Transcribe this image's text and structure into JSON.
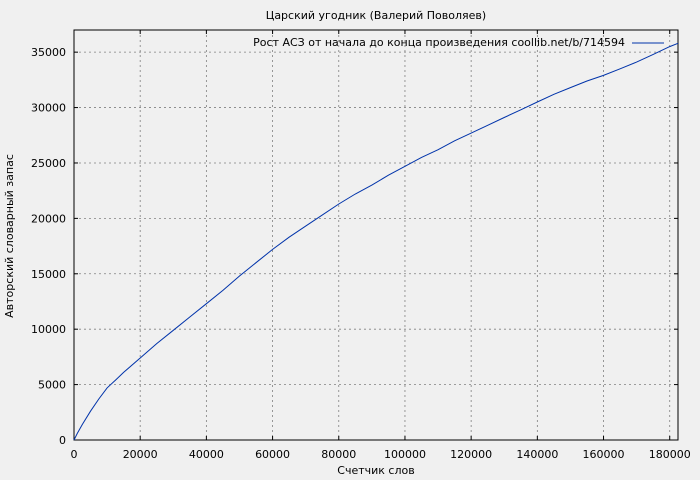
{
  "chart_data": {
    "type": "line",
    "title": "Царский угодник (Валерий Поволяев)",
    "xlabel": "Счетчик слов",
    "ylabel": "Авторский словарный запас",
    "xlim": [
      0,
      182500
    ],
    "ylim": [
      0,
      37000
    ],
    "xticks": [
      0,
      20000,
      40000,
      60000,
      80000,
      100000,
      120000,
      140000,
      160000,
      180000
    ],
    "yticks": [
      0,
      5000,
      10000,
      15000,
      20000,
      25000,
      30000,
      35000
    ],
    "grid": true,
    "legend_position": "top-right",
    "series": [
      {
        "name": "Рост АСЗ от начала до конца произведения coollib.net/b/714594",
        "color": "#0033aa",
        "x": [
          0,
          1000,
          2500,
          5000,
          7500,
          10000,
          12500,
          15000,
          20000,
          25000,
          30000,
          35000,
          40000,
          45000,
          50000,
          55000,
          60000,
          65000,
          70000,
          75000,
          80000,
          85000,
          90000,
          95000,
          100000,
          105000,
          110000,
          115000,
          120000,
          125000,
          130000,
          135000,
          140000,
          145000,
          150000,
          155000,
          160000,
          165000,
          170000,
          175000,
          180000,
          182500
        ],
        "y": [
          0,
          600,
          1400,
          2600,
          3700,
          4700,
          5400,
          6100,
          7400,
          8700,
          9900,
          11100,
          12300,
          13500,
          14800,
          16000,
          17200,
          18300,
          19300,
          20300,
          21300,
          22200,
          23000,
          23900,
          24700,
          25500,
          26200,
          27000,
          27700,
          28400,
          29100,
          29800,
          30500,
          31200,
          31800,
          32400,
          32900,
          33500,
          34100,
          34800,
          35500,
          35800
        ]
      }
    ]
  }
}
